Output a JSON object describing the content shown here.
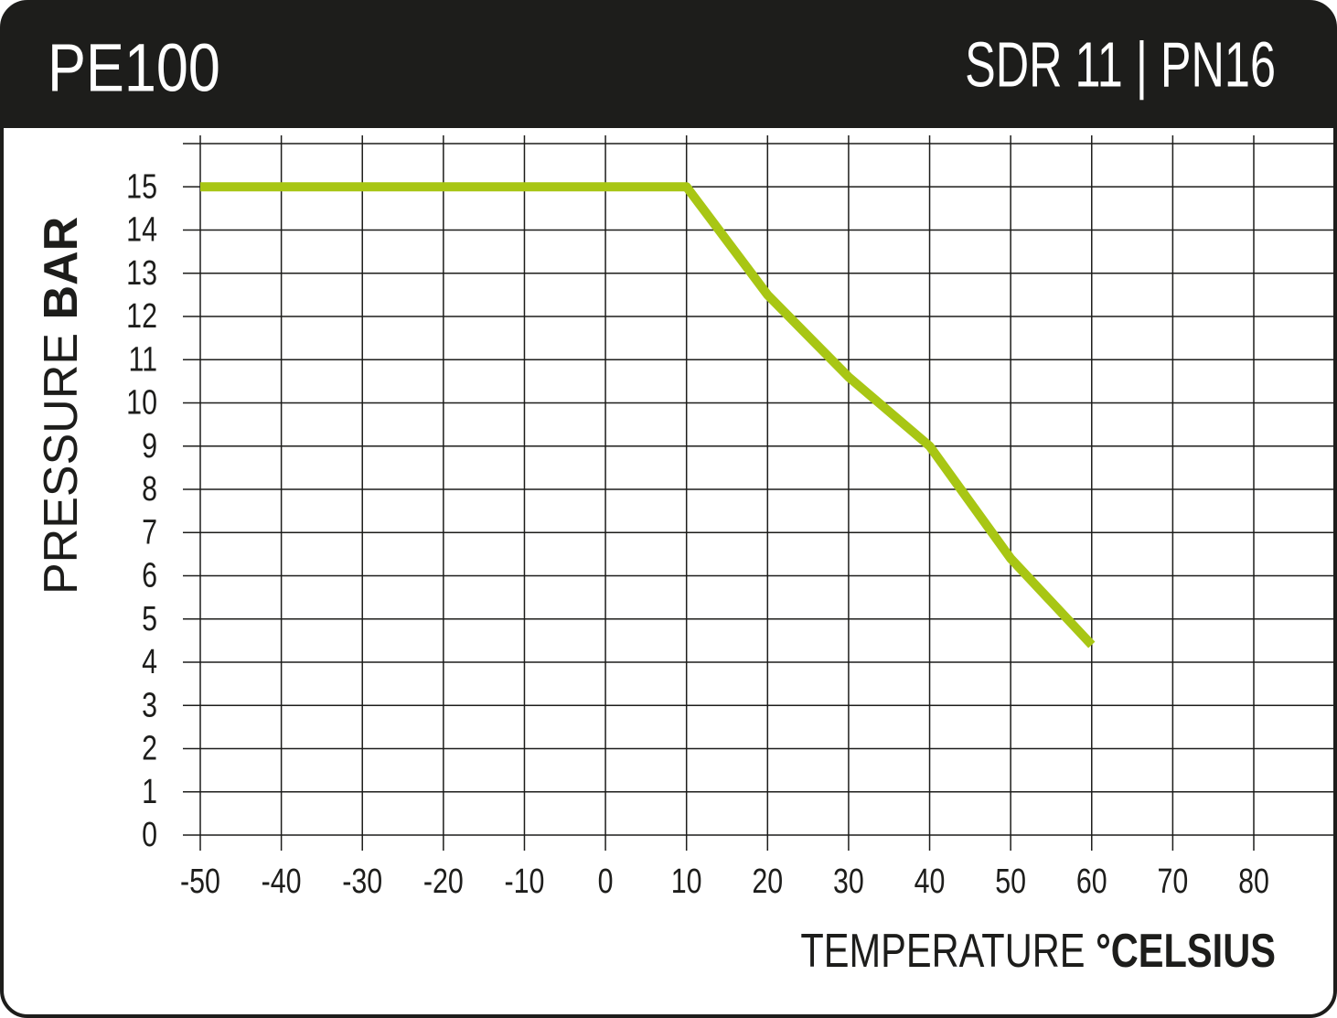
{
  "chart_data": {
    "type": "line",
    "title": "PE100",
    "subtitle": "SDR 11 | PN16",
    "ylabel": {
      "light": "PRESSURE",
      "bold": "BAR"
    },
    "xlabel": {
      "light": "TEMPERATURE",
      "bold": "°CELSIUS"
    },
    "x": [
      -50,
      10,
      20,
      30,
      40,
      50,
      60
    ],
    "series": [
      {
        "name": "PE100 SDR 11",
        "color": "#a8c614",
        "values": [
          15,
          15,
          12.5,
          10.6,
          9,
          6.4,
          4.4
        ]
      }
    ],
    "xlim": [
      -50,
      80
    ],
    "xticks": [
      -50,
      -40,
      -30,
      -20,
      -10,
      0,
      10,
      20,
      30,
      40,
      50,
      60,
      70,
      80
    ],
    "ylim": [
      0,
      16
    ],
    "yticks": [
      0,
      1,
      2,
      3,
      4,
      5,
      6,
      7,
      8,
      9,
      10,
      11,
      12,
      13,
      14,
      15
    ],
    "grid": true
  }
}
